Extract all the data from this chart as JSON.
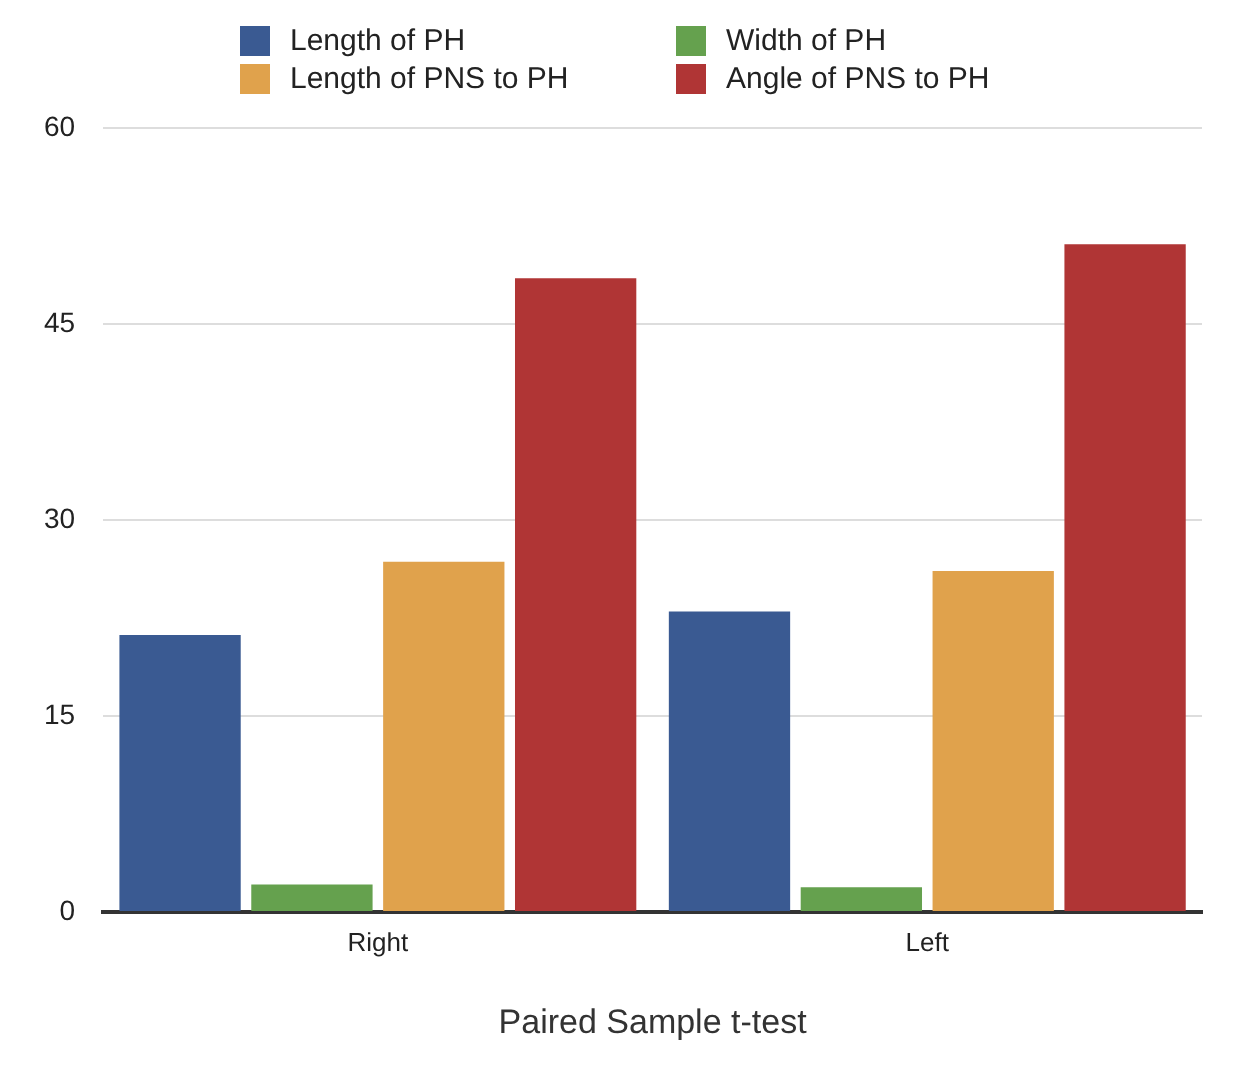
{
  "chart_data": {
    "type": "bar",
    "xlabel": "Paired Sample t-test",
    "categories": [
      "Right",
      "Left"
    ],
    "series": [
      {
        "name": "Length of PH",
        "color": "#3a5a92",
        "values": [
          21.2,
          23.0
        ]
      },
      {
        "name": "Width of PH",
        "color": "#65a14e",
        "values": [
          2.1,
          1.9
        ]
      },
      {
        "name": "Length of PNS to PH",
        "color": "#e0a24c",
        "values": [
          26.8,
          26.1
        ]
      },
      {
        "name": "Angle of PNS to PH",
        "color": "#b03535",
        "values": [
          48.5,
          51.1
        ]
      }
    ],
    "ylim": [
      0,
      60
    ],
    "yticks": [
      0,
      15,
      30,
      45,
      60
    ],
    "grid": "y",
    "legend": "top"
  }
}
